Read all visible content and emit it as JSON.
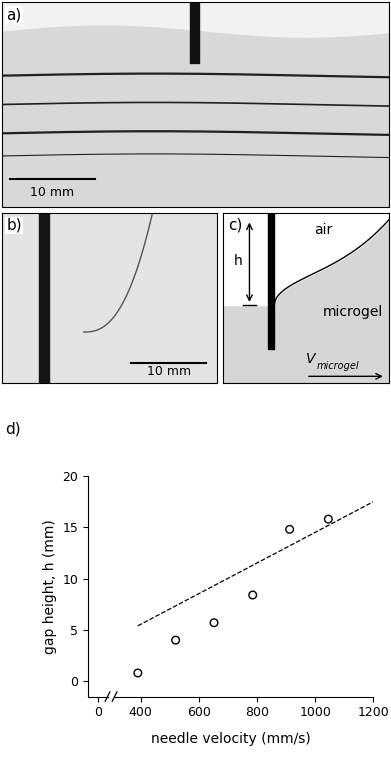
{
  "panels": {
    "a": {
      "label": "a)",
      "scale_bar": "10 mm"
    },
    "b": {
      "label": "b)",
      "scale_bar": "10 mm"
    },
    "c": {
      "label": "c)",
      "upper_region": "air",
      "lower_region": "microgel",
      "dimension": "h",
      "velocity": {
        "symbol": "V",
        "subscript": "microgel"
      }
    },
    "d": {
      "label": "d)"
    }
  },
  "chart_data": {
    "type": "scatter",
    "x_label": "needle velocity (mm/s)",
    "y_label": "gap height, h (mm)",
    "xlim": [
      -60,
      1200
    ],
    "xticks": [
      0,
      400,
      600,
      800,
      1000,
      1200
    ],
    "ylim": [
      -1.5,
      20
    ],
    "yticks": [
      0,
      5,
      10,
      15,
      20
    ],
    "series": [
      {
        "type": "scatter",
        "marker": "o",
        "color": "#000000",
        "x": [
          390,
          520,
          652,
          785,
          912,
          1045
        ],
        "values": [
          0.8,
          4.0,
          5.7,
          8.4,
          14.8,
          15.8
        ]
      },
      {
        "type": "line",
        "line_style": "dashed",
        "color": "#000000",
        "x": [
          390,
          1200
        ],
        "values": [
          5.4,
          17.5
        ]
      }
    ]
  }
}
